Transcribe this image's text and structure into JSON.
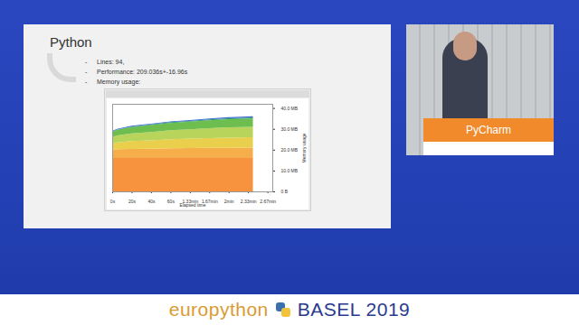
{
  "slide": {
    "title": "Python",
    "bullets": [
      "Lines: 94,",
      "Performance: 209.036s+-16.96s",
      "Memory usage:"
    ]
  },
  "chart_data": {
    "type": "area",
    "stacked": true,
    "x": [
      0,
      5,
      20,
      40,
      60,
      80,
      100,
      120,
      145
    ],
    "xlabel": "Elapsed time",
    "ylabel": "Memory usage",
    "xlim": [
      0,
      165
    ],
    "xticks": [
      {
        "value": 0,
        "label": "0s"
      },
      {
        "value": 20,
        "label": "20s"
      },
      {
        "value": 40,
        "label": "40s"
      },
      {
        "value": 60,
        "label": "60s"
      },
      {
        "value": 80,
        "label": "1.33min"
      },
      {
        "value": 100,
        "label": "1.67min"
      },
      {
        "value": 120,
        "label": "2min"
      },
      {
        "value": 140,
        "label": "2.33min"
      },
      {
        "value": 160,
        "label": "2.67min"
      }
    ],
    "ylim": [
      0,
      42
    ],
    "yticks": [
      {
        "value": 0,
        "label": "0 B"
      },
      {
        "value": 10,
        "label": "10.0 MB"
      },
      {
        "value": 20,
        "label": "20.0 MB"
      },
      {
        "value": 30,
        "label": "30.0 MB"
      },
      {
        "value": 40,
        "label": "40.0 MB"
      }
    ],
    "series": [
      {
        "color": "#f7923e",
        "values": [
          16,
          16,
          16,
          16,
          16,
          16,
          16,
          16,
          16
        ]
      },
      {
        "color": "#f6ae4a",
        "values": [
          4,
          4.2,
          4.4,
          4.5,
          4.7,
          4.8,
          4.9,
          4.9,
          5
        ]
      },
      {
        "color": "#e9cf4b",
        "values": [
          3,
          3.3,
          3.7,
          4,
          4.3,
          4.5,
          4.7,
          4.9,
          5
        ]
      },
      {
        "color": "#b8d45a",
        "values": [
          3,
          3.3,
          3.7,
          4,
          4.3,
          4.5,
          4.7,
          4.9,
          5
        ]
      },
      {
        "color": "#6dbd4f",
        "values": [
          2.5,
          2.7,
          3,
          3.3,
          3.5,
          3.6,
          3.8,
          3.9,
          4
        ]
      },
      {
        "color": "#2e9e6e",
        "values": [
          0.2,
          0.2,
          0.3,
          0.3,
          0.4,
          0.4,
          0.4,
          0.5,
          0.5
        ]
      },
      {
        "color": "#3d6fd1",
        "values": [
          0.3,
          0.3,
          0.4,
          0.4,
          0.4,
          0.4,
          0.5,
          0.5,
          0.5
        ]
      }
    ]
  },
  "podium": "PyCharm",
  "banner": {
    "left": "europython",
    "right": "BASEL 2019"
  }
}
